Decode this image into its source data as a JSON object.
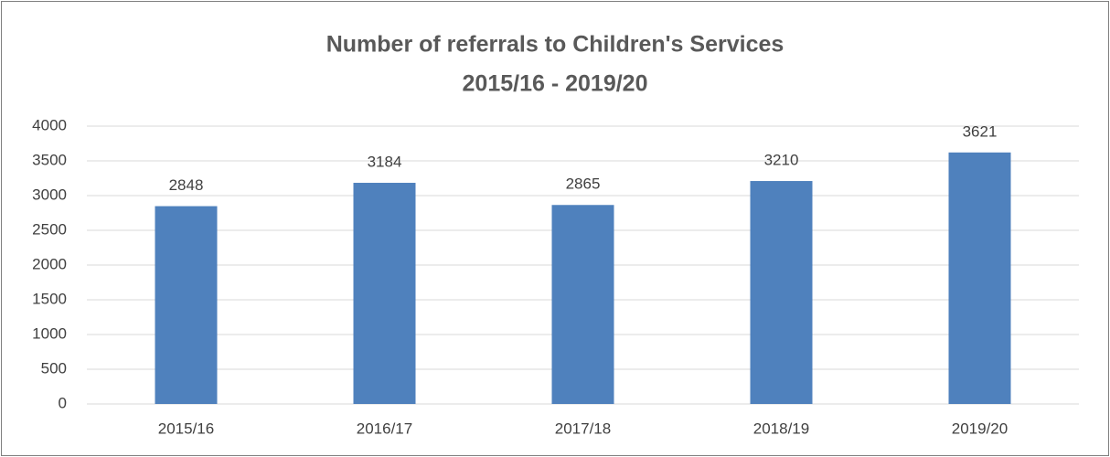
{
  "chart_data": {
    "type": "bar",
    "title": "Number of referrals to Children's Services",
    "subtitle": "2015/16 - 2019/20",
    "categories": [
      "2015/16",
      "2016/17",
      "2017/18",
      "2018/19",
      "2019/20"
    ],
    "values": [
      2848,
      3184,
      2865,
      3210,
      3621
    ],
    "color": "#4f81bd",
    "ylim": [
      0,
      4000
    ],
    "yticks": [
      0,
      500,
      1000,
      1500,
      2000,
      2500,
      3000,
      3500,
      4000
    ],
    "grid": true
  }
}
